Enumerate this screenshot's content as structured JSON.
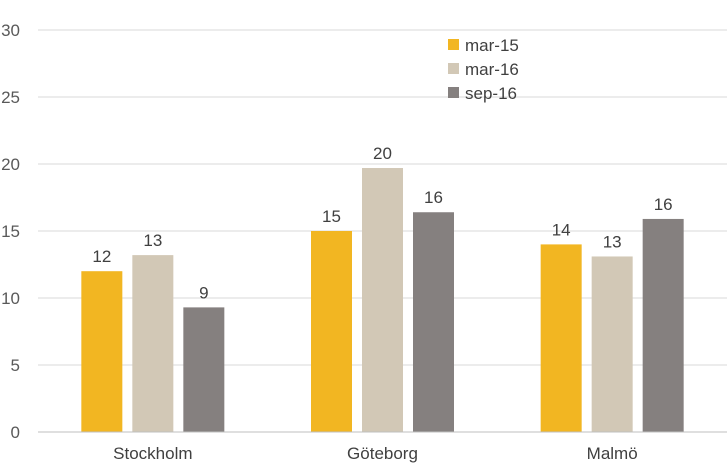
{
  "chart_data": {
    "type": "bar",
    "categories": [
      "Stockholm",
      "Göteborg",
      "Malmö"
    ],
    "series": [
      {
        "name": "mar-15",
        "values": [
          12,
          15,
          14
        ],
        "value_labels": [
          "12",
          "15",
          "14"
        ],
        "color": "#F2B622"
      },
      {
        "name": "mar-16",
        "values": [
          13.2,
          19.7,
          13.1
        ],
        "value_labels": [
          "13",
          "20",
          "13"
        ],
        "color": "#D2C8B6"
      },
      {
        "name": "sep-16",
        "values": [
          9.3,
          16.4,
          15.9
        ],
        "value_labels": [
          "9",
          "16",
          "16"
        ],
        "color": "#85807F"
      }
    ],
    "yticks": [
      "0",
      "5",
      "10",
      "15",
      "20",
      "25",
      "30"
    ],
    "ylim": [
      0,
      30
    ],
    "grid": true,
    "legend_position": "top-center"
  }
}
